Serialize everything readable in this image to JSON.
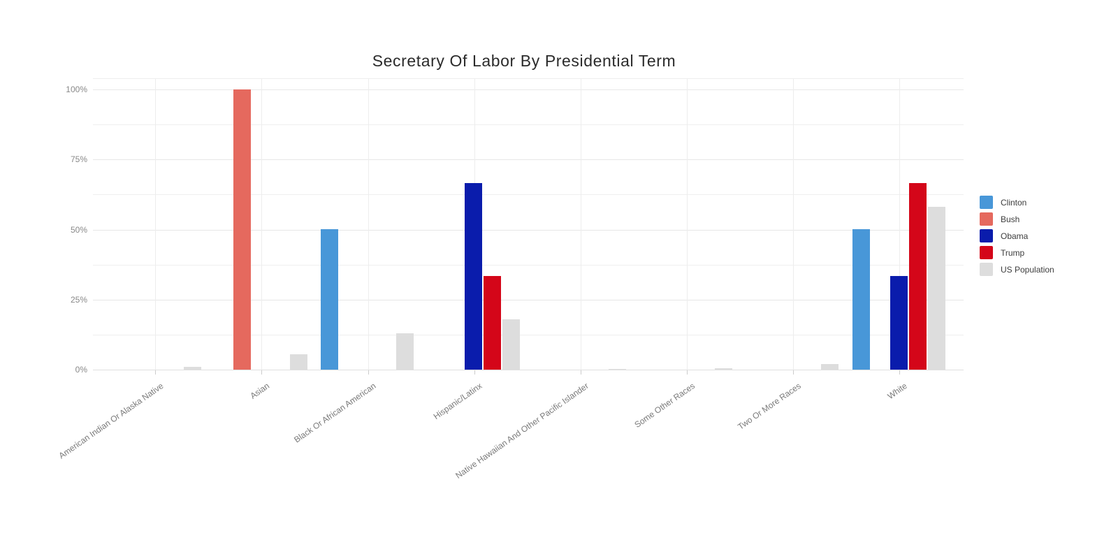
{
  "chart_data": {
    "type": "bar",
    "title": "Secretary Of Labor By Presidential Term",
    "categories": [
      "American Indian Or Alaska Native",
      "Asian",
      "Black Or African American",
      "Hispanic/Latinx",
      "Native Hawaiian And Other Pacific Islander",
      "Some Other Races",
      "Two Or More Races",
      "White"
    ],
    "series": [
      {
        "name": "Clinton",
        "color": "#4897d8",
        "values": [
          0,
          0,
          50,
          0,
          0,
          0,
          0,
          50
        ]
      },
      {
        "name": "Bush",
        "color": "#e5695e",
        "values": [
          0,
          100,
          0,
          0,
          0,
          0,
          0,
          0
        ]
      },
      {
        "name": "Obama",
        "color": "#0a1cac",
        "values": [
          0,
          0,
          0,
          66.7,
          0,
          0,
          0,
          33.3
        ]
      },
      {
        "name": "Trump",
        "color": "#d40619",
        "values": [
          0,
          0,
          0,
          33.3,
          0,
          0,
          0,
          66.7
        ]
      },
      {
        "name": "US Population",
        "color": "#dddddd",
        "values": [
          1,
          5.5,
          13,
          18,
          0.2,
          0.5,
          2,
          58
        ]
      }
    ],
    "y_axis": {
      "unit": "%",
      "ticks": [
        {
          "label": "0%",
          "value": 0
        },
        {
          "label": "25%",
          "value": 25
        },
        {
          "label": "50%",
          "value": 50
        },
        {
          "label": "75%",
          "value": 75
        },
        {
          "label": "100%",
          "value": 100
        }
      ],
      "minor_step": 12.5,
      "ylim": [
        0,
        104
      ]
    },
    "grid": true,
    "legend_position": "right"
  }
}
